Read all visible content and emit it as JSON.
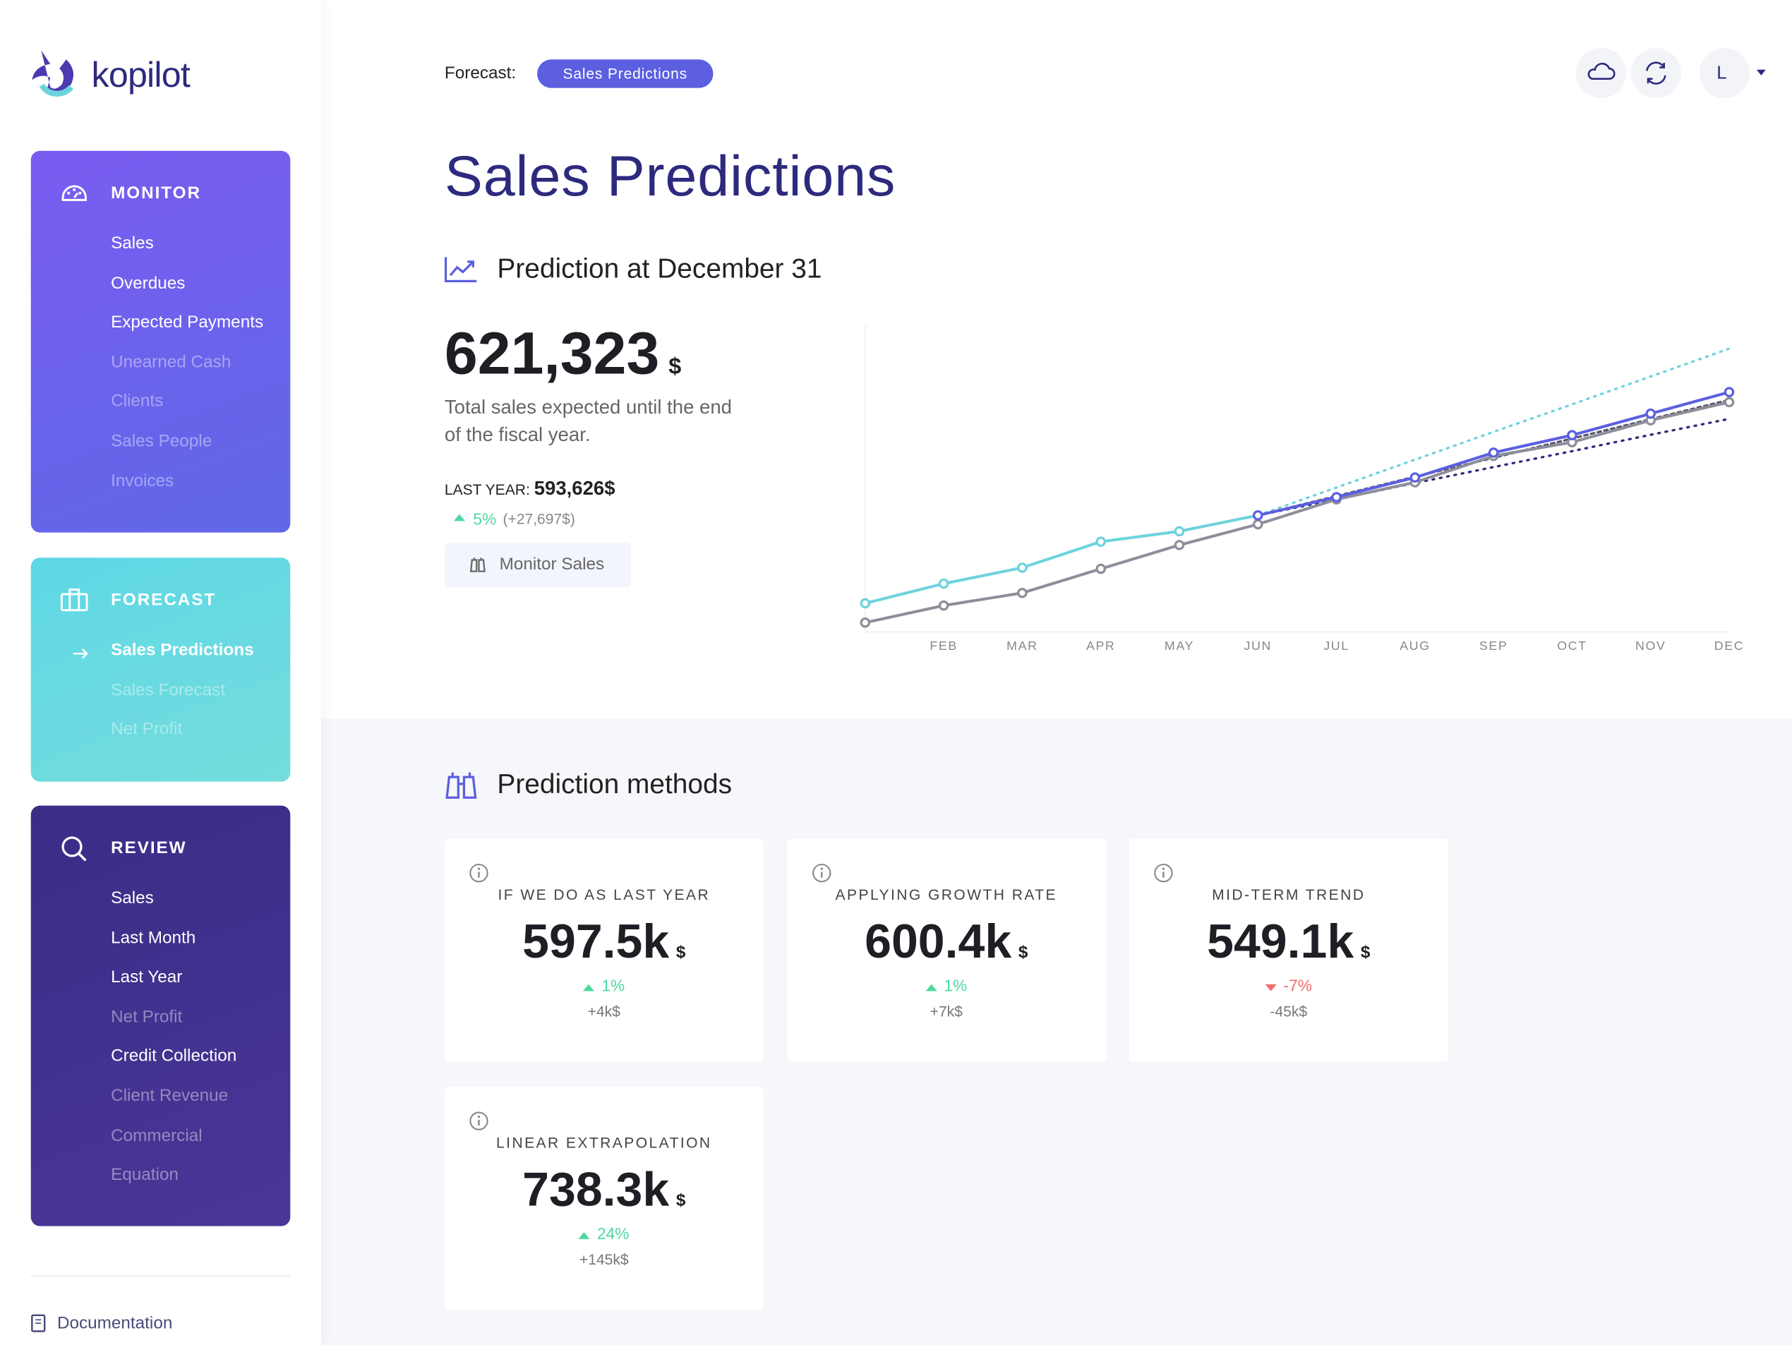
{
  "sidebar": {
    "brand": "kopilot",
    "sections": [
      {
        "title": "MONITOR",
        "items": [
          {
            "label": "Sales",
            "enabled": true
          },
          {
            "label": "Overdues",
            "enabled": true
          },
          {
            "label": "Expected Payments",
            "enabled": true
          },
          {
            "label": "Unearned Cash",
            "enabled": false
          },
          {
            "label": "Clients",
            "enabled": false
          },
          {
            "label": "Sales People",
            "enabled": false
          },
          {
            "label": "Invoices",
            "enabled": false
          }
        ]
      },
      {
        "title": "FORECAST",
        "items": [
          {
            "label": "Sales Predictions",
            "enabled": true,
            "active": true
          },
          {
            "label": "Sales Forecast",
            "enabled": false
          },
          {
            "label": "Net Profit",
            "enabled": false
          }
        ]
      },
      {
        "title": "REVIEW",
        "items": [
          {
            "label": "Sales",
            "enabled": true
          },
          {
            "label": "Last Month",
            "enabled": true
          },
          {
            "label": "Last Year",
            "enabled": true
          },
          {
            "label": "Net Profit",
            "enabled": false
          },
          {
            "label": "Credit Collection",
            "enabled": true
          },
          {
            "label": "Client Revenue",
            "enabled": false
          },
          {
            "label": "Commercial",
            "enabled": false
          },
          {
            "label": "Equation",
            "enabled": false
          }
        ]
      }
    ],
    "footer": "Documentation"
  },
  "header": {
    "forecast_label": "Forecast:",
    "forecast_tag": "Sales Predictions",
    "user": "L"
  },
  "page_title": "Sales Predictions",
  "summary": {
    "heading": "Prediction at December 31",
    "value": "621,323",
    "unit": "$",
    "description": "Total sales expected until the end of the fiscal year.",
    "last_year_label": "LAST YEAR:",
    "last_year_value": "593,626$",
    "change": "5%",
    "change_detail": "(+27,697$)",
    "button": "Monitor Sales"
  },
  "chart_data": {
    "type": "line",
    "categories": [
      null,
      "FEB",
      "MAR",
      "APR",
      "MAY",
      "JUN",
      "JUL",
      "AUG",
      "SEP",
      "OCT",
      "NOV",
      "DEC"
    ],
    "ylim": [
      -25000,
      800000
    ],
    "series": [
      {
        "color": "#6dd3dc",
        "style": "dotted",
        "markers": false,
        "values": [
          null,
          null,
          null,
          null,
          null,
          289000,
          364000,
          439000,
          514000,
          588000,
          663000,
          738000
        ]
      },
      {
        "color": "#2d2a7e",
        "style": "dotted",
        "markers": false,
        "values": [
          null,
          null,
          null,
          null,
          null,
          289000,
          332000,
          376000,
          419000,
          462000,
          506000,
          549000
        ]
      },
      {
        "color": "#55556a",
        "style": "dashed",
        "markers": false,
        "values": [
          null,
          null,
          null,
          null,
          null,
          289000,
          341000,
          393000,
          444000,
          496000,
          548000,
          600000
        ]
      },
      {
        "color": "#8e8e9a",
        "style": "solid",
        "markers": true,
        "values": [
          0,
          46000,
          80000,
          145000,
          209000,
          265000,
          332000,
          378000,
          449000,
          486000,
          545000,
          594000
        ]
      },
      {
        "color": "#6dd3dc",
        "style": "solid",
        "markers": true,
        "values": [
          52000,
          105000,
          148000,
          218000,
          246000,
          289000,
          null,
          null,
          null,
          null,
          null,
          null
        ]
      },
      {
        "color": "#5b5fe0",
        "style": "solid",
        "markers": true,
        "values": [
          null,
          null,
          null,
          null,
          null,
          289000,
          338000,
          391000,
          458000,
          505000,
          563000,
          621000
        ]
      }
    ]
  },
  "methods": {
    "heading": "Prediction methods",
    "cards": [
      {
        "title": "IF WE DO AS LAST YEAR",
        "value": "597.5k",
        "unit": "$",
        "change": "1%",
        "delta": "+4k$",
        "direction": "up"
      },
      {
        "title": "APPLYING GROWTH RATE",
        "value": "600.4k",
        "unit": "$",
        "change": "1%",
        "delta": "+7k$",
        "direction": "up"
      },
      {
        "title": "MID-TERM TREND",
        "value": "549.1k",
        "unit": "$",
        "change": "-7%",
        "delta": "-45k$",
        "direction": "down"
      },
      {
        "title": "LINEAR EXTRAPOLATION",
        "value": "738.3k",
        "unit": "$",
        "change": "24%",
        "delta": "+145k$",
        "direction": "up"
      }
    ]
  }
}
